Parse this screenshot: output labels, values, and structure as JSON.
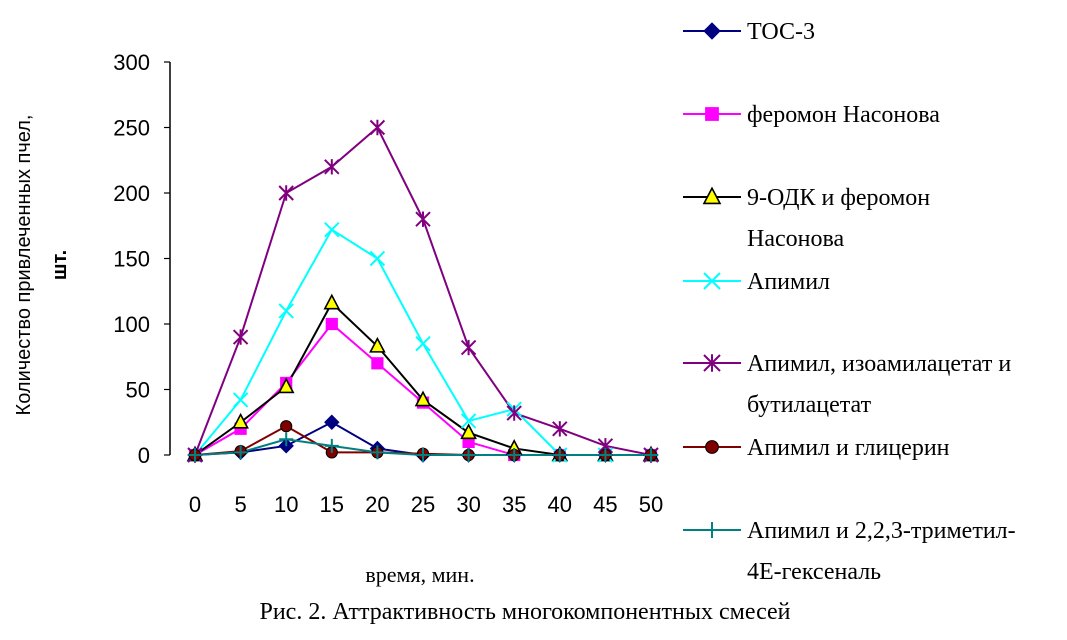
{
  "chart_data": {
    "type": "line",
    "title": "",
    "caption": "Рис. 2. Аттрактивность многокомпонентных смесей",
    "xlabel": "время, мин.",
    "ylabel_line1": "Количество привлеченных  пчел,",
    "ylabel_line2": "шт.",
    "x": [
      0,
      5,
      10,
      15,
      20,
      25,
      30,
      35,
      40,
      45,
      50
    ],
    "x_tick_labels": [
      "0",
      "5",
      "10",
      "15",
      "20",
      "25",
      "30",
      "35",
      "40",
      "45",
      "50"
    ],
    "y_tick_labels": [
      "0",
      "50",
      "100",
      "150",
      "200",
      "250",
      "300"
    ],
    "y_ticks": [
      0,
      50,
      100,
      150,
      200,
      250,
      300
    ],
    "ylim": [
      0,
      300
    ],
    "grid": false,
    "legend_position": "right",
    "series": [
      {
        "name": "ТОС-3",
        "legend_lines": [
          "ТОС-3"
        ],
        "color": "#000080",
        "marker": "diamond",
        "values": [
          0,
          2,
          7,
          25,
          5,
          0,
          0,
          0,
          0,
          0,
          0
        ]
      },
      {
        "name": "феромон Насонова",
        "legend_lines": [
          "феромон Насонова"
        ],
        "color": "#ff00ff",
        "marker": "square",
        "values": [
          0,
          20,
          55,
          100,
          70,
          40,
          10,
          0,
          0,
          0,
          0
        ]
      },
      {
        "name": "9-ОДК и феромон Насонова",
        "legend_lines": [
          "9-ОДК и феромон",
          "Насонова"
        ],
        "color": "#000000",
        "marker": "triangle",
        "marker_fill": "#ffff00",
        "values": [
          0,
          25,
          52,
          116,
          83,
          42,
          17,
          5,
          0,
          0,
          0
        ]
      },
      {
        "name": "Апимил",
        "legend_lines": [
          "Апимил"
        ],
        "color": "#00ffff",
        "marker": "x",
        "values": [
          0,
          42,
          110,
          172,
          150,
          85,
          26,
          35,
          0,
          0,
          0
        ]
      },
      {
        "name": "Апимил, изоамилацетат и бутилацетат",
        "legend_lines": [
          "Апимил, изоамилацетат и",
          "бутилацетат"
        ],
        "color": "#800080",
        "marker": "asterisk",
        "values": [
          0,
          90,
          200,
          220,
          250,
          180,
          82,
          32,
          20,
          7,
          0
        ]
      },
      {
        "name": "Апимил и глицерин",
        "legend_lines": [
          "Апимил и глицерин"
        ],
        "color": "#800000",
        "marker": "circle",
        "values": [
          0,
          3,
          22,
          2,
          2,
          1,
          0,
          0,
          0,
          0,
          0
        ]
      },
      {
        "name": "Апимил и 2,2,3-триметил-4Е-гексеналь",
        "legend_lines": [
          "Апимил и 2,2,3-триметил-",
          "4Е-гексеналь"
        ],
        "color": "#008080",
        "marker": "plus",
        "values": [
          0,
          2,
          12,
          7,
          2,
          0,
          0,
          0,
          0,
          0,
          0
        ]
      }
    ]
  }
}
